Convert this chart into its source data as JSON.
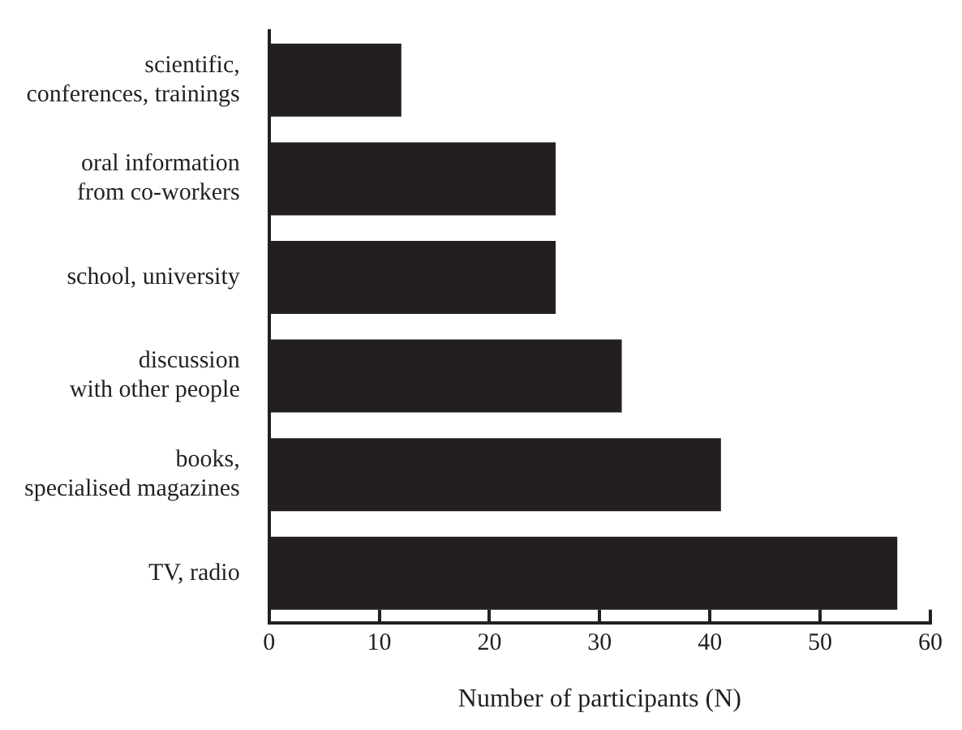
{
  "chart_data": {
    "type": "bar",
    "orientation": "horizontal",
    "xlabel": "Number of participants (N)",
    "categories": [
      "scientific,\nconferences, trainings",
      "oral information\nfrom co-workers",
      "school, university",
      "discussion\nwith other people",
      "books,\nspecialised magazines",
      "TV, radio"
    ],
    "values": [
      12,
      26,
      26,
      32,
      41,
      57
    ],
    "color": "#231f20",
    "xlim": [
      0,
      60
    ],
    "xticks": [
      0,
      10,
      20,
      30,
      40,
      50,
      60
    ],
    "grid": false,
    "legend": false
  }
}
